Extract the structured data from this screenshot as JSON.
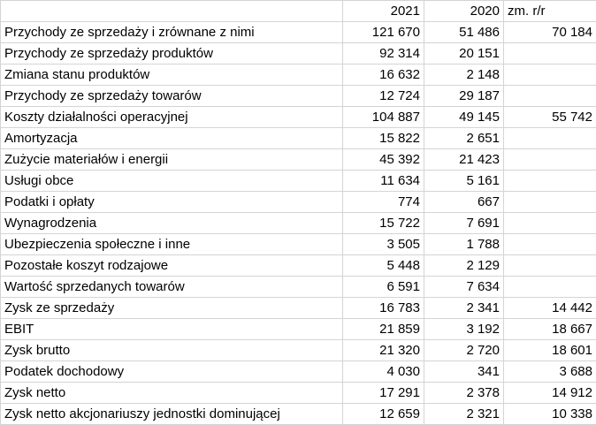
{
  "header": {
    "label": "",
    "y2021": "2021",
    "y2020": "2020",
    "change": "zm. r/r"
  },
  "rows": [
    {
      "label": "Przychody ze sprzedaży i zrównane z nimi",
      "y2021": "121 670",
      "y2020": "51 486",
      "change": "70 184"
    },
    {
      "label": "Przychody ze sprzedaży produktów",
      "y2021": "92 314",
      "y2020": "20 151",
      "change": ""
    },
    {
      "label": "Zmiana stanu produktów",
      "y2021": "16 632",
      "y2020": "2 148",
      "change": ""
    },
    {
      "label": "Przychody ze sprzedaży towarów",
      "y2021": "12 724",
      "y2020": "29 187",
      "change": ""
    },
    {
      "label": "Koszty działalności operacyjnej",
      "y2021": "104 887",
      "y2020": "49 145",
      "change": "55 742"
    },
    {
      "label": "Amortyzacja",
      "y2021": "15 822",
      "y2020": "2 651",
      "change": ""
    },
    {
      "label": "Zużycie materiałów i energii",
      "y2021": "45 392",
      "y2020": "21 423",
      "change": ""
    },
    {
      "label": "Usługi obce",
      "y2021": "11 634",
      "y2020": "5 161",
      "change": ""
    },
    {
      "label": "Podatki i opłaty",
      "y2021": "774",
      "y2020": "667",
      "change": ""
    },
    {
      "label": "Wynagrodzenia",
      "y2021": "15 722",
      "y2020": "7 691",
      "change": ""
    },
    {
      "label": "Ubezpieczenia społeczne i inne",
      "y2021": "3 505",
      "y2020": "1 788",
      "change": ""
    },
    {
      "label": "Pozostałe koszyt rodzajowe",
      "y2021": "5 448",
      "y2020": "2 129",
      "change": ""
    },
    {
      "label": "Wartość sprzedanych towarów",
      "y2021": "6 591",
      "y2020": "7 634",
      "change": ""
    },
    {
      "label": "Zysk ze sprzedaży",
      "y2021": "16 783",
      "y2020": "2 341",
      "change": "14 442"
    },
    {
      "label": "EBIT",
      "y2021": "21 859",
      "y2020": "3 192",
      "change": "18 667"
    },
    {
      "label": "Zysk brutto",
      "y2021": "21 320",
      "y2020": "2 720",
      "change": "18 601"
    },
    {
      "label": "Podatek dochodowy",
      "y2021": "4 030",
      "y2020": "341",
      "change": "3 688"
    },
    {
      "label": "Zysk netto",
      "y2021": "17 291",
      "y2020": "2 378",
      "change": "14 912"
    },
    {
      "label": "Zysk netto akcjonariuszy jednostki dominującej",
      "y2021": "12 659",
      "y2020": "2 321",
      "change": "10 338"
    }
  ]
}
